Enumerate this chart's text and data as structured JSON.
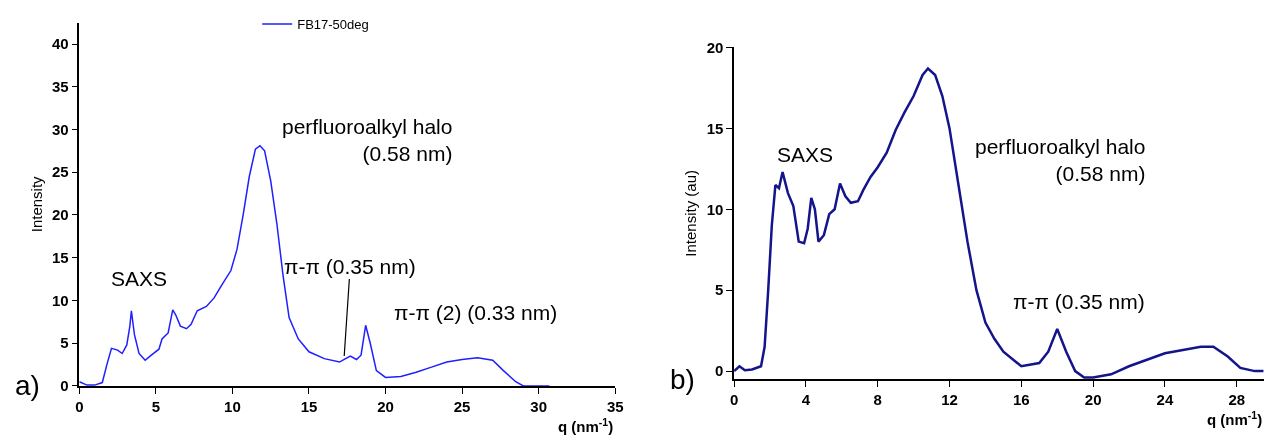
{
  "chart_data": [
    {
      "type": "line",
      "xlabel": "q (nm$^{-1}$)",
      "ylabel": "Intensity",
      "xlim": [
        0,
        35
      ],
      "xticks": [
        0,
        5,
        10,
        15,
        20,
        25,
        30,
        35
      ],
      "ylim": [
        0,
        42.5
      ],
      "yticks": [
        0,
        5,
        10,
        15,
        20,
        25,
        30,
        35,
        40
      ],
      "legend": "top",
      "marker": "none",
      "line_style": "solid",
      "series": [
        {
          "name": "FB17-50deg",
          "color": "#1f1fff",
          "x": [
            0,
            0.5,
            1,
            1.5,
            1.8,
            2.1,
            2.5,
            2.8,
            3.1,
            3.3,
            3.4,
            3.6,
            3.9,
            4.3,
            4.7,
            5.2,
            5.4,
            5.8,
            6.1,
            6.3,
            6.6,
            7,
            7.3,
            7.7,
            8.3,
            8.8,
            9.3,
            9.9,
            10.3,
            10.7,
            11.1,
            11.5,
            11.8,
            12.1,
            12.5,
            12.9,
            13.3,
            13.7,
            14.3,
            15,
            16,
            17,
            17.3,
            17.7,
            18.1,
            18.4,
            18.7,
            19,
            19.4,
            20,
            21,
            22,
            23,
            24,
            25,
            26,
            27,
            27.7,
            28.5,
            29,
            30.7
          ],
          "values": [
            0.5,
            0.1,
            0.1,
            0.4,
            2.5,
            4.4,
            4.2,
            3.8,
            4.8,
            7,
            8.8,
            6,
            3.8,
            3,
            3.6,
            4.3,
            5.5,
            6.2,
            8.9,
            8.3,
            7,
            6.7,
            7.2,
            8.8,
            9.3,
            10.3,
            11.8,
            13.5,
            16,
            20,
            24.5,
            27.7,
            28.1,
            27.5,
            24,
            19,
            13,
            8,
            5.5,
            4,
            3.2,
            2.8,
            3.1,
            3.5,
            3.1,
            3.6,
            7.1,
            5,
            1.8,
            1,
            1.1,
            1.6,
            2.2,
            2.8,
            3.1,
            3.3,
            3,
            1.8,
            0.5,
            0,
            0
          ]
        }
      ],
      "annotations": [
        {
          "text": "SAXS",
          "x": 3.4,
          "y": 8.8
        },
        {
          "text": "perfluoroalkyl halo\n(0.58 nm)",
          "x": 11.8,
          "y": 28.1
        },
        {
          "text": "π-π (0.35 nm)",
          "x": 17.3,
          "y": 3.5
        },
        {
          "text": "π-π (2) (0.33 nm)",
          "x": 18.7,
          "y": 7.1
        },
        "a)"
      ]
    },
    {
      "type": "line",
      "xlabel": "q (nm$^{-1}$)",
      "ylabel": "Intensity (au)",
      "xlim": [
        0,
        29.5
      ],
      "xticks": [
        0,
        4,
        8,
        12,
        16,
        20,
        24,
        28
      ],
      "ylim": [
        -0.5,
        20
      ],
      "yticks": [
        0,
        5,
        10,
        15,
        20
      ],
      "marker": "none",
      "line_style": "solid",
      "series": [
        {
          "color": "#14148c",
          "x": [
            0,
            0.3,
            0.6,
            1,
            1.5,
            1.7,
            1.9,
            2.1,
            2.3,
            2.5,
            2.7,
            3,
            3.3,
            3.6,
            3.9,
            4.1,
            4.3,
            4.5,
            4.7,
            5,
            5.3,
            5.6,
            5.9,
            6.2,
            6.5,
            6.9,
            7.2,
            7.6,
            8,
            8.5,
            9,
            9.5,
            10,
            10.5,
            10.8,
            11.2,
            11.6,
            12,
            12.5,
            13,
            13.5,
            14,
            14.5,
            15,
            16,
            17,
            17.5,
            18,
            18.5,
            19,
            19.5,
            20,
            21,
            22,
            23,
            24,
            25,
            26,
            26.7,
            27.5,
            28.2,
            29,
            29.5
          ],
          "values": [
            0,
            0.3,
            0.05,
            0.1,
            0.3,
            1.5,
            5,
            9,
            11.5,
            11.3,
            12.3,
            11,
            10.2,
            8,
            7.9,
            8.8,
            10.7,
            10,
            8,
            8.4,
            9.7,
            10,
            11.6,
            10.8,
            10.4,
            10.5,
            11.2,
            12,
            12.6,
            13.5,
            14.9,
            16,
            17,
            18.3,
            18.7,
            18.3,
            17,
            15,
            11.5,
            8,
            5,
            3,
            2,
            1.2,
            0.3,
            0.5,
            1.2,
            2.6,
            1.2,
            0,
            -0.4,
            -0.4,
            -0.2,
            0.3,
            0.7,
            1.1,
            1.3,
            1.5,
            1.5,
            0.9,
            0.2,
            0,
            0
          ]
        }
      ],
      "annotations": [
        {
          "text": "SAXS",
          "x": 2.7,
          "y": 12.3
        },
        "perfluoroalkyl halo\n(0.58 nm)",
        {
          "text": "π-π (0.35 nm)",
          "x": 18,
          "y": 2.6
        },
        "b)"
      ]
    }
  ]
}
